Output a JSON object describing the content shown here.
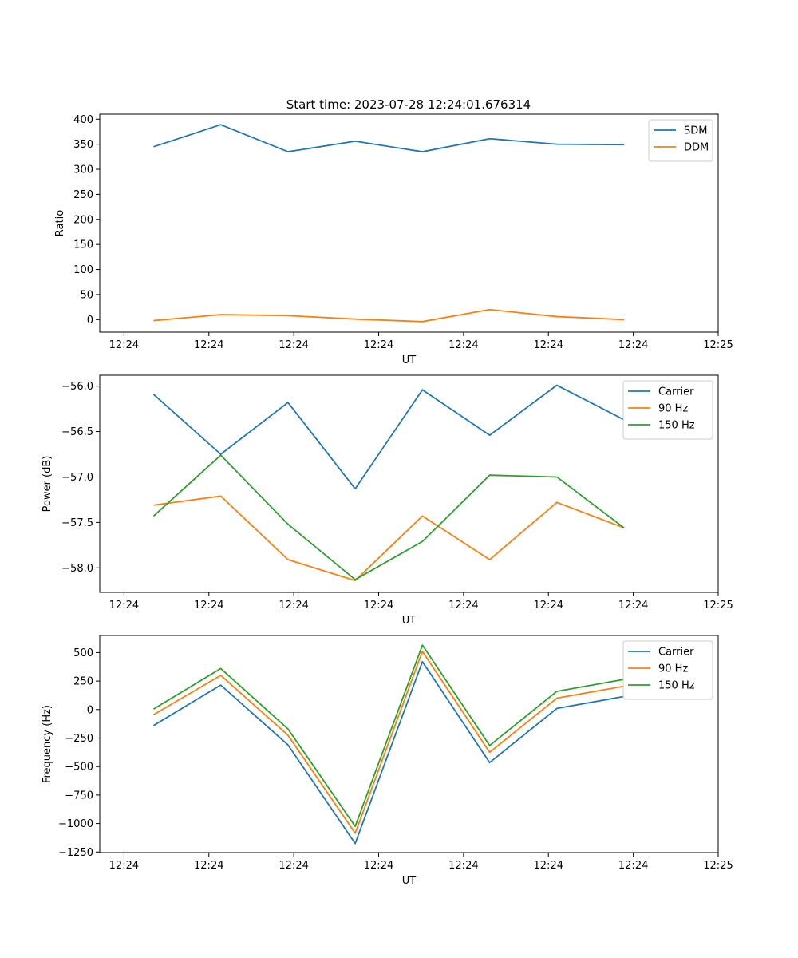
{
  "figure_title": "Start time: 2023-07-28 12:24:01.676314",
  "colors": {
    "blue": "#1f77b4",
    "orange": "#ff7f0e",
    "green": "#2ca02c",
    "axis": "#000000",
    "legend_border": "#cccccc"
  },
  "chart_data": [
    {
      "type": "line",
      "title": "Start time: 2023-07-28 12:24:01.676314",
      "xlabel": "UT",
      "ylabel": "Ratio",
      "x_ticks": [
        "12:24",
        "12:24",
        "12:24",
        "12:24",
        "12:24",
        "12:24",
        "12:24",
        "12:25"
      ],
      "x": [
        1,
        2,
        3,
        4,
        5,
        6,
        7,
        8
      ],
      "xlim": [
        0.2,
        9.4
      ],
      "ylim": [
        -25,
        410
      ],
      "y_ticks": [
        0,
        50,
        100,
        150,
        200,
        250,
        300,
        350,
        400
      ],
      "legend_position": "top-right",
      "series": [
        {
          "name": "SDM",
          "color": "#1f77b4",
          "values": [
            345,
            389,
            335,
            356,
            335,
            361,
            350,
            349
          ]
        },
        {
          "name": "DDM",
          "color": "#ff7f0e",
          "values": [
            -2,
            10,
            8,
            1,
            -4,
            20,
            6,
            0
          ]
        }
      ]
    },
    {
      "type": "line",
      "title": "",
      "xlabel": "UT",
      "ylabel": "Power (dB)",
      "x_ticks": [
        "12:24",
        "12:24",
        "12:24",
        "12:24",
        "12:24",
        "12:24",
        "12:24",
        "12:25"
      ],
      "x": [
        1,
        2,
        3,
        4,
        5,
        6,
        7,
        8
      ],
      "xlim": [
        0.2,
        9.4
      ],
      "ylim": [
        -58.27,
        -55.88
      ],
      "y_ticks": [
        -58.0,
        -57.5,
        -57.0,
        -56.5,
        -56.0
      ],
      "y_tick_labels": [
        "−58.0",
        "−57.5",
        "−57.0",
        "−56.5",
        "−56.0"
      ],
      "legend_position": "top-right",
      "series": [
        {
          "name": "Carrier",
          "color": "#1f77b4",
          "values": [
            -56.09,
            -56.75,
            -56.18,
            -57.13,
            -56.04,
            -56.54,
            -55.99,
            -56.37
          ]
        },
        {
          "name": "90 Hz",
          "color": "#ff7f0e",
          "values": [
            -57.31,
            -57.21,
            -57.91,
            -58.14,
            -57.43,
            -57.91,
            -57.28,
            -57.56
          ]
        },
        {
          "name": "150 Hz",
          "color": "#2ca02c",
          "values": [
            -57.43,
            -56.76,
            -57.52,
            -58.13,
            -57.71,
            -56.98,
            -57.0,
            -57.56
          ]
        }
      ]
    },
    {
      "type": "line",
      "title": "",
      "xlabel": "UT",
      "ylabel": "Frequency (Hz)",
      "x_ticks": [
        "12:24",
        "12:24",
        "12:24",
        "12:24",
        "12:24",
        "12:24",
        "12:24",
        "12:25"
      ],
      "x": [
        1,
        2,
        3,
        4,
        5,
        6,
        7,
        8
      ],
      "xlim": [
        0.2,
        9.4
      ],
      "ylim": [
        -1255,
        650
      ],
      "y_ticks": [
        -1250,
        -1000,
        -750,
        -500,
        -250,
        0,
        250,
        500
      ],
      "y_tick_labels": [
        "−1250",
        "−1000",
        "−750",
        "−500",
        "−250",
        "0",
        "250",
        "500"
      ],
      "legend_position": "top-right",
      "series": [
        {
          "name": "Carrier",
          "color": "#1f77b4",
          "values": [
            -140,
            215,
            -310,
            -1175,
            420,
            -465,
            10,
            115
          ]
        },
        {
          "name": "90 Hz",
          "color": "#ff7f0e",
          "values": [
            -45,
            300,
            -225,
            -1085,
            510,
            -375,
            100,
            205
          ]
        },
        {
          "name": "150 Hz",
          "color": "#2ca02c",
          "values": [
            5,
            360,
            -170,
            -1025,
            565,
            -315,
            160,
            265
          ]
        }
      ]
    }
  ]
}
